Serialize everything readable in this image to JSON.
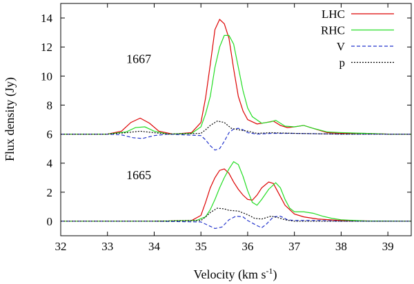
{
  "chart_data": {
    "type": "line",
    "xlabel": "Velocity (km s",
    "xlabel_exponent": "-1",
    "xlabel_close": ")",
    "ylabel": "Flux density  (Jy)",
    "xlim": [
      32,
      39.5
    ],
    "ylim": [
      -1,
      15
    ],
    "x_ticks": [
      "32",
      "33",
      "34",
      "35",
      "36",
      "37",
      "38",
      "39"
    ],
    "y_ticks": [
      "0",
      "2",
      "4",
      "6",
      "8",
      "10",
      "12",
      "14"
    ],
    "grid": false,
    "legend_position": "top-right",
    "annotations": [
      {
        "text": "1667",
        "x": 33.7,
        "y": 10.9
      },
      {
        "text": "1665",
        "x": 33.7,
        "y": 2.9
      }
    ],
    "series": [
      {
        "name": "LHC",
        "color": "#dd0000",
        "dash": "solid",
        "points": [
          [
            32.0,
            6.0
          ],
          [
            33.0,
            6.0
          ],
          [
            33.3,
            6.2
          ],
          [
            33.5,
            6.8
          ],
          [
            33.7,
            7.1
          ],
          [
            33.9,
            6.75
          ],
          [
            34.1,
            6.2
          ],
          [
            34.4,
            6.0
          ],
          [
            34.8,
            6.1
          ],
          [
            35.0,
            6.8
          ],
          [
            35.1,
            8.5
          ],
          [
            35.2,
            10.8
          ],
          [
            35.3,
            13.2
          ],
          [
            35.4,
            13.9
          ],
          [
            35.5,
            13.6
          ],
          [
            35.6,
            12.6
          ],
          [
            35.7,
            10.5
          ],
          [
            35.8,
            8.6
          ],
          [
            35.9,
            7.6
          ],
          [
            36.0,
            7.0
          ],
          [
            36.2,
            6.7
          ],
          [
            36.4,
            6.8
          ],
          [
            36.55,
            6.9
          ],
          [
            36.7,
            6.6
          ],
          [
            36.85,
            6.45
          ],
          [
            37.0,
            6.5
          ],
          [
            37.2,
            6.6
          ],
          [
            37.4,
            6.4
          ],
          [
            37.7,
            6.1
          ],
          [
            38.0,
            6.05
          ],
          [
            38.5,
            6.05
          ],
          [
            39.0,
            6.0
          ],
          [
            39.5,
            6.0
          ],
          [
            32.0,
            0.0
          ],
          [
            33.0,
            0.0
          ],
          [
            34.0,
            0.0
          ],
          [
            34.8,
            0.05
          ],
          [
            35.0,
            0.4
          ],
          [
            35.1,
            1.3
          ],
          [
            35.2,
            2.3
          ],
          [
            35.3,
            3.0
          ],
          [
            35.4,
            3.5
          ],
          [
            35.5,
            3.6
          ],
          [
            35.6,
            3.3
          ],
          [
            35.7,
            2.7
          ],
          [
            35.8,
            2.2
          ],
          [
            35.9,
            1.8
          ],
          [
            36.0,
            1.5
          ],
          [
            36.1,
            1.45
          ],
          [
            36.2,
            1.8
          ],
          [
            36.3,
            2.3
          ],
          [
            36.45,
            2.7
          ],
          [
            36.55,
            2.6
          ],
          [
            36.65,
            2.0
          ],
          [
            36.8,
            1.1
          ],
          [
            37.0,
            0.5
          ],
          [
            37.2,
            0.3
          ],
          [
            37.5,
            0.15
          ],
          [
            38.0,
            0.05
          ],
          [
            39.0,
            0.0
          ],
          [
            39.5,
            0.0
          ]
        ]
      },
      {
        "name": "RHC",
        "color": "#22dd22",
        "dash": "solid",
        "points": [
          [
            32.0,
            6.0
          ],
          [
            33.0,
            6.0
          ],
          [
            33.4,
            6.15
          ],
          [
            33.6,
            6.45
          ],
          [
            33.8,
            6.5
          ],
          [
            34.0,
            6.2
          ],
          [
            34.3,
            6.0
          ],
          [
            34.8,
            6.05
          ],
          [
            35.0,
            6.5
          ],
          [
            35.1,
            7.4
          ],
          [
            35.2,
            8.6
          ],
          [
            35.3,
            10.6
          ],
          [
            35.4,
            12.0
          ],
          [
            35.5,
            12.8
          ],
          [
            35.6,
            12.8
          ],
          [
            35.7,
            12.2
          ],
          [
            35.8,
            10.6
          ],
          [
            35.9,
            9.0
          ],
          [
            36.0,
            7.8
          ],
          [
            36.1,
            7.2
          ],
          [
            36.3,
            6.75
          ],
          [
            36.5,
            6.85
          ],
          [
            36.6,
            6.95
          ],
          [
            36.8,
            6.55
          ],
          [
            37.0,
            6.5
          ],
          [
            37.2,
            6.6
          ],
          [
            37.4,
            6.4
          ],
          [
            37.7,
            6.15
          ],
          [
            38.0,
            6.1
          ],
          [
            38.5,
            6.05
          ],
          [
            39.0,
            6.0
          ],
          [
            39.5,
            6.0
          ],
          [
            32.0,
            0.0
          ],
          [
            33.0,
            0.0
          ],
          [
            34.0,
            0.0
          ],
          [
            34.9,
            0.05
          ],
          [
            35.1,
            0.3
          ],
          [
            35.2,
            0.8
          ],
          [
            35.3,
            1.5
          ],
          [
            35.4,
            2.3
          ],
          [
            35.5,
            3.0
          ],
          [
            35.6,
            3.6
          ],
          [
            35.7,
            4.1
          ],
          [
            35.8,
            3.9
          ],
          [
            35.9,
            3.1
          ],
          [
            36.0,
            2.1
          ],
          [
            36.1,
            1.3
          ],
          [
            36.2,
            1.1
          ],
          [
            36.3,
            1.5
          ],
          [
            36.45,
            2.2
          ],
          [
            36.6,
            2.65
          ],
          [
            36.7,
            2.3
          ],
          [
            36.8,
            1.5
          ],
          [
            36.9,
            0.9
          ],
          [
            37.0,
            0.65
          ],
          [
            37.2,
            0.65
          ],
          [
            37.4,
            0.55
          ],
          [
            37.6,
            0.35
          ],
          [
            37.8,
            0.2
          ],
          [
            38.0,
            0.1
          ],
          [
            38.5,
            0.02
          ],
          [
            39.5,
            0.0
          ]
        ]
      },
      {
        "name": "V",
        "color": "#2233cc",
        "dash": "5,3",
        "points": [
          [
            32.0,
            6.0
          ],
          [
            33.0,
            6.0
          ],
          [
            33.3,
            5.95
          ],
          [
            33.55,
            5.75
          ],
          [
            33.75,
            5.7
          ],
          [
            34.0,
            5.9
          ],
          [
            34.3,
            6.0
          ],
          [
            35.0,
            5.9
          ],
          [
            35.1,
            5.6
          ],
          [
            35.2,
            5.2
          ],
          [
            35.3,
            4.9
          ],
          [
            35.4,
            5.0
          ],
          [
            35.5,
            5.5
          ],
          [
            35.6,
            6.1
          ],
          [
            35.7,
            6.35
          ],
          [
            35.8,
            6.4
          ],
          [
            35.9,
            6.3
          ],
          [
            36.0,
            6.1
          ],
          [
            36.2,
            6.0
          ],
          [
            36.5,
            6.05
          ],
          [
            37.0,
            6.05
          ],
          [
            38.0,
            6.0
          ],
          [
            39.5,
            6.0
          ],
          [
            32.0,
            0.0
          ],
          [
            34.0,
            0.0
          ],
          [
            35.0,
            -0.05
          ],
          [
            35.2,
            -0.35
          ],
          [
            35.3,
            -0.5
          ],
          [
            35.45,
            -0.4
          ],
          [
            35.6,
            0.1
          ],
          [
            35.75,
            0.35
          ],
          [
            35.9,
            0.3
          ],
          [
            36.0,
            0.05
          ],
          [
            36.2,
            -0.3
          ],
          [
            36.3,
            -0.45
          ],
          [
            36.4,
            -0.2
          ],
          [
            36.55,
            0.3
          ],
          [
            36.7,
            0.35
          ],
          [
            36.85,
            0.1
          ],
          [
            37.0,
            0.05
          ],
          [
            37.5,
            0.05
          ],
          [
            38.0,
            0.0
          ],
          [
            39.5,
            0.0
          ]
        ]
      },
      {
        "name": "p",
        "color": "#000000",
        "dash": "2,2",
        "points": [
          [
            32.0,
            6.0
          ],
          [
            33.0,
            6.0
          ],
          [
            33.4,
            6.1
          ],
          [
            33.7,
            6.2
          ],
          [
            34.0,
            6.1
          ],
          [
            34.3,
            6.0
          ],
          [
            35.0,
            6.05
          ],
          [
            35.1,
            6.3
          ],
          [
            35.2,
            6.6
          ],
          [
            35.35,
            6.9
          ],
          [
            35.5,
            6.8
          ],
          [
            35.65,
            6.4
          ],
          [
            35.8,
            6.3
          ],
          [
            36.0,
            6.2
          ],
          [
            36.2,
            6.05
          ],
          [
            36.5,
            6.1
          ],
          [
            37.0,
            6.05
          ],
          [
            38.0,
            6.0
          ],
          [
            39.5,
            6.0
          ],
          [
            32.0,
            0.0
          ],
          [
            34.0,
            0.0
          ],
          [
            35.0,
            0.05
          ],
          [
            35.1,
            0.3
          ],
          [
            35.2,
            0.6
          ],
          [
            35.35,
            0.9
          ],
          [
            35.5,
            0.85
          ],
          [
            35.6,
            0.75
          ],
          [
            35.8,
            0.7
          ],
          [
            36.0,
            0.45
          ],
          [
            36.15,
            0.2
          ],
          [
            36.3,
            0.15
          ],
          [
            36.5,
            0.35
          ],
          [
            36.65,
            0.25
          ],
          [
            36.8,
            0.1
          ],
          [
            37.0,
            0.0
          ],
          [
            39.5,
            0.0
          ]
        ]
      }
    ]
  }
}
